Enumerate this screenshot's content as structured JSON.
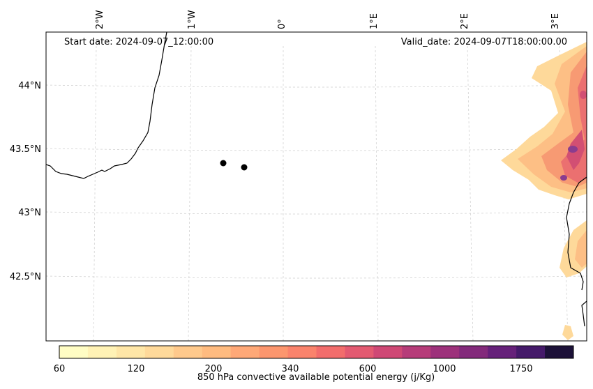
{
  "map": {
    "start_label": "Start date: 2024-09-07_12:00:00",
    "valid_label": "Valid_date: 2024-09-07T18:00:00.00",
    "lon_labels": [
      "2°W",
      "1°W",
      "0°",
      "1°E",
      "2°E",
      "3°E"
    ],
    "lat_labels": [
      "44°N",
      "43.5°N",
      "43°N",
      "42.5°N"
    ],
    "gridlines": true,
    "coastline_color": "#000000",
    "markers": [
      "point-1",
      "point-2"
    ]
  },
  "colorbar": {
    "label": "850 hPa convective available potential energy (j/Kg)",
    "tick_labels": [
      "60",
      "120",
      "200",
      "340",
      "600",
      "1000",
      "1750"
    ],
    "colors": [
      "#fffdc4",
      "#fff2b5",
      "#fee6a7",
      "#fed99a",
      "#fec98c",
      "#febb80",
      "#fea877",
      "#fc966e",
      "#fa836c",
      "#f26d6c",
      "#e35a71",
      "#cf4875",
      "#b63c79",
      "#9d317b",
      "#832a7b",
      "#66217a",
      "#451a6a",
      "#1c1138"
    ]
  }
}
